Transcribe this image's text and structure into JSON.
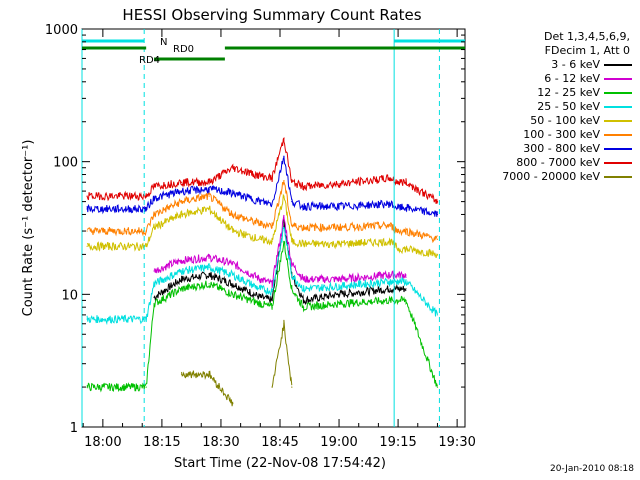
{
  "chart_data": {
    "type": "line",
    "title": "HESSI Observing Summary Count Rates",
    "xlabel": "Start Time (22-Nov-08 17:54:42)",
    "ylabel": "Count Rate (s⁻¹ detector⁻¹)",
    "yscale": "log",
    "xlim": [
      "17:54:42",
      "19:32:00"
    ],
    "ylim": [
      1,
      1000
    ],
    "xticks": [
      "18:00",
      "18:15",
      "18:30",
      "18:45",
      "19:00",
      "19:15",
      "19:30"
    ],
    "yticks": [
      "1",
      "10",
      "100",
      "1000"
    ],
    "grid": false,
    "legend_placement": "right",
    "legend_header": [
      "Det 1,3,4,5,6,9,",
      "FDecim 1, Att 0"
    ],
    "series": [
      {
        "name": "3 - 6 keV",
        "color": "#000000",
        "x": [
          "17:56",
          "18:11",
          "18:13",
          "18:20",
          "18:27",
          "18:33",
          "18:40",
          "18:43",
          "18:46",
          "18:48",
          "18:51",
          "19:00",
          "19:13",
          "19:15",
          "19:17",
          "19:25"
        ],
        "y": [
          null,
          null,
          9.5,
          13,
          14,
          12,
          9.5,
          9,
          35,
          14,
          9,
          10,
          11,
          11,
          11,
          null
        ]
      },
      {
        "name": "6 - 12 keV",
        "color": "#d000d0",
        "x": [
          "17:56",
          "18:11",
          "18:13",
          "18:20",
          "18:27",
          "18:33",
          "18:40",
          "18:43",
          "18:46",
          "18:48",
          "18:51",
          "19:00",
          "19:13",
          "19:15",
          "19:17",
          "19:25"
        ],
        "y": [
          null,
          null,
          15,
          18,
          19,
          17,
          13,
          12,
          38,
          17,
          13,
          13,
          14,
          14,
          14,
          null
        ]
      },
      {
        "name": "12 - 25 keV",
        "color": "#00c000",
        "x": [
          "17:56",
          "18:11",
          "18:13",
          "18:20",
          "18:27",
          "18:33",
          "18:40",
          "18:43",
          "18:46",
          "18:48",
          "18:51",
          "19:00",
          "19:13",
          "19:15",
          "19:17",
          "19:25"
        ],
        "y": [
          2,
          2,
          8.5,
          11,
          12,
          10,
          8.5,
          8,
          25,
          11,
          8,
          8.5,
          9,
          9,
          9,
          2
        ]
      },
      {
        "name": "25 - 50 keV",
        "color": "#00e0e0",
        "x": [
          "17:56",
          "18:11",
          "18:13",
          "18:20",
          "18:27",
          "18:33",
          "18:40",
          "18:43",
          "18:46",
          "18:48",
          "18:51",
          "19:00",
          "19:13",
          "19:15",
          "19:17",
          "19:25"
        ],
        "y": [
          6.5,
          6.5,
          12,
          15,
          16,
          14,
          11,
          10.5,
          32,
          14,
          11,
          11.5,
          12.5,
          12.5,
          12.5,
          7
        ]
      },
      {
        "name": "50 - 100 keV",
        "color": "#d0c000",
        "x": [
          "17:56",
          "18:11",
          "18:13",
          "18:20",
          "18:27",
          "18:33",
          "18:40",
          "18:43",
          "18:46",
          "18:48",
          "18:51",
          "19:00",
          "19:13",
          "19:15",
          "19:17",
          "19:25"
        ],
        "y": [
          23,
          23,
          32,
          40,
          44,
          30,
          26,
          25,
          55,
          25,
          24,
          24,
          25,
          22,
          22,
          20
        ]
      },
      {
        "name": "100 - 300 keV",
        "color": "#ff8000",
        "x": [
          "17:56",
          "18:11",
          "18:13",
          "18:20",
          "18:27",
          "18:33",
          "18:40",
          "18:43",
          "18:46",
          "18:48",
          "18:51",
          "19:00",
          "19:13",
          "19:15",
          "19:17",
          "19:25"
        ],
        "y": [
          30,
          30,
          40,
          50,
          55,
          40,
          34,
          33,
          72,
          33,
          32,
          32,
          33,
          30,
          30,
          26
        ]
      },
      {
        "name": "300 - 800 keV",
        "color": "#0000e0",
        "x": [
          "17:56",
          "18:11",
          "18:13",
          "18:20",
          "18:27",
          "18:33",
          "18:40",
          "18:43",
          "18:46",
          "18:48",
          "18:51",
          "19:00",
          "19:13",
          "19:15",
          "19:17",
          "19:25"
        ],
        "y": [
          44,
          44,
          53,
          60,
          62,
          58,
          50,
          48,
          110,
          50,
          46,
          46,
          48,
          45,
          45,
          40
        ]
      },
      {
        "name": "800 - 7000 keV",
        "color": "#e00000",
        "x": [
          "17:56",
          "18:11",
          "18:13",
          "18:20",
          "18:27",
          "18:33",
          "18:40",
          "18:43",
          "18:46",
          "18:48",
          "18:51",
          "19:00",
          "19:13",
          "19:15",
          "19:17",
          "19:25"
        ],
        "y": [
          55,
          55,
          65,
          70,
          70,
          90,
          78,
          75,
          150,
          70,
          65,
          68,
          75,
          70,
          70,
          50
        ]
      },
      {
        "name": "7000 - 20000 keV",
        "color": "#808000",
        "x": [
          "17:56",
          "18:11",
          "18:13",
          "18:20",
          "18:27",
          "18:33",
          "18:40",
          "18:43",
          "18:46",
          "18:48",
          "18:51",
          "19:00",
          "19:13",
          "19:15",
          "19:17",
          "19:25"
        ],
        "y": [
          null,
          null,
          null,
          2.5,
          2.5,
          1.5,
          null,
          2,
          6,
          2,
          null,
          null,
          null,
          null,
          null,
          null
        ]
      }
    ],
    "bars": [
      {
        "label": "N",
        "color": "#00e0e0",
        "segments": [
          [
            "17:54:42",
            "18:10:30"
          ],
          [
            "19:14:00",
            "19:32:00"
          ]
        ]
      },
      {
        "label": "RD0",
        "color": "#008000",
        "segments": [
          [
            "17:54:42",
            "18:11:00"
          ],
          [
            "18:31:00",
            "19:32:00"
          ]
        ]
      },
      {
        "label": "RD4",
        "color": "#008000",
        "segments": [
          [
            "18:13:00",
            "18:31:00"
          ]
        ]
      }
    ],
    "vlines": [
      {
        "time": "17:54:42",
        "color": "#00e0e0",
        "style": "solid"
      },
      {
        "time": "18:10:30",
        "color": "#00e0e0",
        "style": "dashed"
      },
      {
        "time": "19:14:00",
        "color": "#00e0e0",
        "style": "solid"
      },
      {
        "time": "19:25:30",
        "color": "#00e0e0",
        "style": "dashed"
      }
    ]
  },
  "timestamp": "20-Jan-2010 08:18"
}
